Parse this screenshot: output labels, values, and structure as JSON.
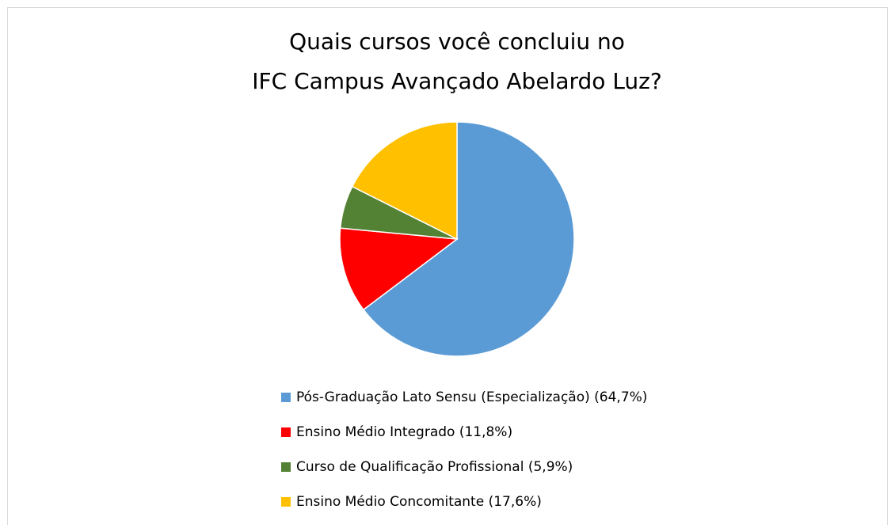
{
  "chart_data": {
    "type": "pie",
    "title": [
      "Quais cursos você concluiu no",
      "IFC Campus Avançado Abelardo Luz?"
    ],
    "categories": [
      "Pós-Graduação Lato Sensu (Especialização) (64,7%)",
      "Ensino Médio Integrado (11,8%)",
      "Curso de Qualificação Profissional (5,9%)",
      "Ensino Médio Concomitante (17,6%)"
    ],
    "values": [
      64.7,
      11.8,
      5.9,
      17.6
    ],
    "colors": [
      "#5b9bd5",
      "#ff0000",
      "#548235",
      "#ffc000"
    ]
  }
}
